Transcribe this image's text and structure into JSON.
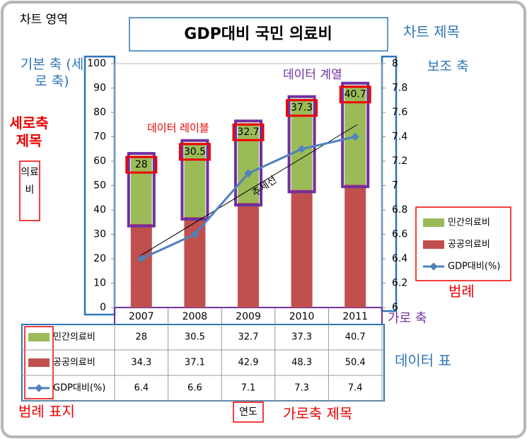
{
  "chart_data": {
    "type": "bar",
    "stacked": true,
    "title": "GDP대비 국민 의료비",
    "y_label": "의료비",
    "x_label": "연도",
    "categories": [
      "2007",
      "2008",
      "2009",
      "2010",
      "2011"
    ],
    "series": [
      {
        "name": "민간의료비",
        "color": "#9bbb59",
        "values": [
          28,
          30.5,
          32.7,
          37.3,
          40.7
        ],
        "data_labels": true
      },
      {
        "name": "공공의료비",
        "color": "#c0504d",
        "values": [
          34.3,
          37.1,
          42.9,
          48.3,
          50.4
        ]
      },
      {
        "name": "GDP대비(%)",
        "color": "#4f81bd",
        "type": "line",
        "axis": "y2",
        "values": [
          6.4,
          6.6,
          7.1,
          7.3,
          7.4
        ],
        "trendline": true
      }
    ],
    "ylim": [
      0,
      100
    ],
    "yticks": [
      0,
      10,
      20,
      30,
      40,
      50,
      60,
      70,
      80,
      90,
      100
    ],
    "y2lim": [
      6,
      8
    ],
    "y2ticks": [
      6,
      6.2,
      6.4,
      6.6,
      6.8,
      7,
      7.2,
      7.4,
      7.6,
      7.8,
      8
    ],
    "legend": "right",
    "data_table": true,
    "annotations": [
      "차트 영역",
      "차트 제목",
      "기본 축 (세로 축)",
      "보조 축",
      "데이터 계열",
      "데이터 레이블",
      "세로축 제목",
      "추세선",
      "범례",
      "가로 축",
      "데이터 표",
      "범례 표지",
      "가로축 제목"
    ]
  }
}
